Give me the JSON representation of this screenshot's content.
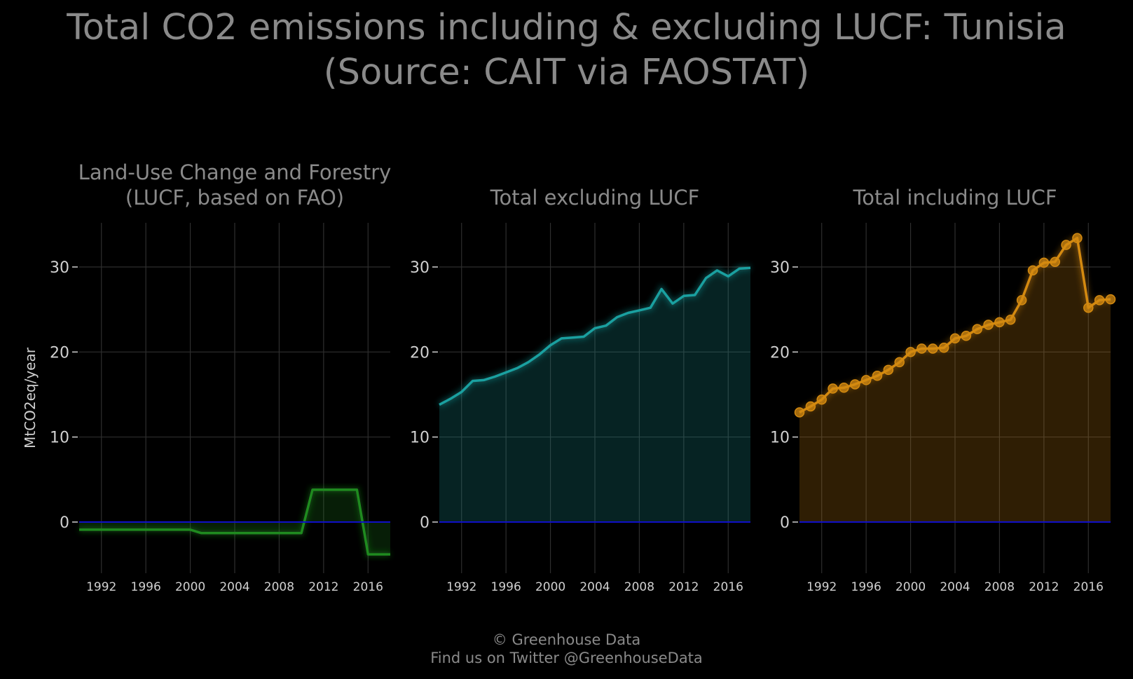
{
  "title_line1": "Total CO2 emissions including & excluding LUCF: Tunisia",
  "title_line2": "(Source: CAIT via FAOSTAT)",
  "credit_line1": "© Greenhouse Data",
  "credit_line2": "Find us on Twitter @GreenhouseData",
  "colors": {
    "background": "#000000",
    "grid": "#2e2e2e",
    "text": "#8a8a8a",
    "tick_text": "#d0d0d0",
    "zero_line": "#1010c8",
    "lucf": "#1f8a1f",
    "excl": "#1aa0a0",
    "incl": "#d48a10"
  },
  "chart_data": [
    {
      "type": "area",
      "title": "Land-Use Change and Forestry\n(LUCF, based on FAO)",
      "ylabel": "MtCO2eq/year",
      "xlim": [
        1990,
        2018
      ],
      "ylim": [
        -6,
        35
      ],
      "xticks": [
        1992,
        1996,
        2000,
        2004,
        2008,
        2012,
        2016
      ],
      "yticks": [
        0,
        10,
        20,
        30
      ],
      "markers": false,
      "color": "lucf",
      "series": [
        {
          "x": [
            1990,
            1991,
            1992,
            1993,
            1994,
            1995,
            1996,
            1997,
            1998,
            1999,
            2000,
            2001,
            2002,
            2003,
            2004,
            2005,
            2006,
            2007,
            2008,
            2009,
            2010,
            2011,
            2012,
            2013,
            2014,
            2015,
            2016,
            2017,
            2018
          ],
          "values": [
            -0.9,
            -0.9,
            -0.9,
            -0.9,
            -0.9,
            -0.9,
            -0.9,
            -0.9,
            -0.9,
            -0.9,
            -0.9,
            -1.3,
            -1.3,
            -1.3,
            -1.3,
            -1.3,
            -1.3,
            -1.3,
            -1.3,
            -1.3,
            -1.3,
            3.8,
            3.8,
            3.8,
            3.8,
            3.8,
            -3.8,
            -3.8,
            -3.8
          ]
        }
      ]
    },
    {
      "type": "area",
      "title": "Total excluding LUCF",
      "ylabel": "",
      "xlim": [
        1990,
        2018
      ],
      "ylim": [
        -6,
        35
      ],
      "xticks": [
        1992,
        1996,
        2000,
        2004,
        2008,
        2012,
        2016
      ],
      "yticks": [
        0,
        10,
        20,
        30
      ],
      "markers": false,
      "color": "excl",
      "series": [
        {
          "x": [
            1990,
            1991,
            1992,
            1993,
            1994,
            1995,
            1996,
            1997,
            1998,
            1999,
            2000,
            2001,
            2002,
            2003,
            2004,
            2005,
            2006,
            2007,
            2008,
            2009,
            2010,
            2011,
            2012,
            2013,
            2014,
            2015,
            2016,
            2017,
            2018
          ],
          "values": [
            13.8,
            14.5,
            15.3,
            16.6,
            16.7,
            17.1,
            17.6,
            18.1,
            18.8,
            19.7,
            20.8,
            21.6,
            21.7,
            21.8,
            22.8,
            23.1,
            24.1,
            24.6,
            24.9,
            25.2,
            27.4,
            25.7,
            26.6,
            26.7,
            28.7,
            29.6,
            28.9,
            29.8,
            29.9
          ]
        }
      ]
    },
    {
      "type": "area",
      "title": "Total including LUCF",
      "ylabel": "",
      "xlim": [
        1990,
        2018
      ],
      "ylim": [
        -6,
        35
      ],
      "xticks": [
        1992,
        1996,
        2000,
        2004,
        2008,
        2012,
        2016
      ],
      "yticks": [
        0,
        10,
        20,
        30
      ],
      "markers": true,
      "color": "incl",
      "series": [
        {
          "x": [
            1990,
            1991,
            1992,
            1993,
            1994,
            1995,
            1996,
            1997,
            1998,
            1999,
            2000,
            2001,
            2002,
            2003,
            2004,
            2005,
            2006,
            2007,
            2008,
            2009,
            2010,
            2011,
            2012,
            2013,
            2014,
            2015,
            2016,
            2017,
            2018
          ],
          "values": [
            12.9,
            13.6,
            14.4,
            15.7,
            15.8,
            16.2,
            16.7,
            17.2,
            17.9,
            18.8,
            20.0,
            20.4,
            20.4,
            20.5,
            21.6,
            21.9,
            22.7,
            23.2,
            23.5,
            23.8,
            26.1,
            29.6,
            30.5,
            30.6,
            32.6,
            33.4,
            25.2,
            26.1,
            26.2
          ]
        }
      ]
    }
  ]
}
